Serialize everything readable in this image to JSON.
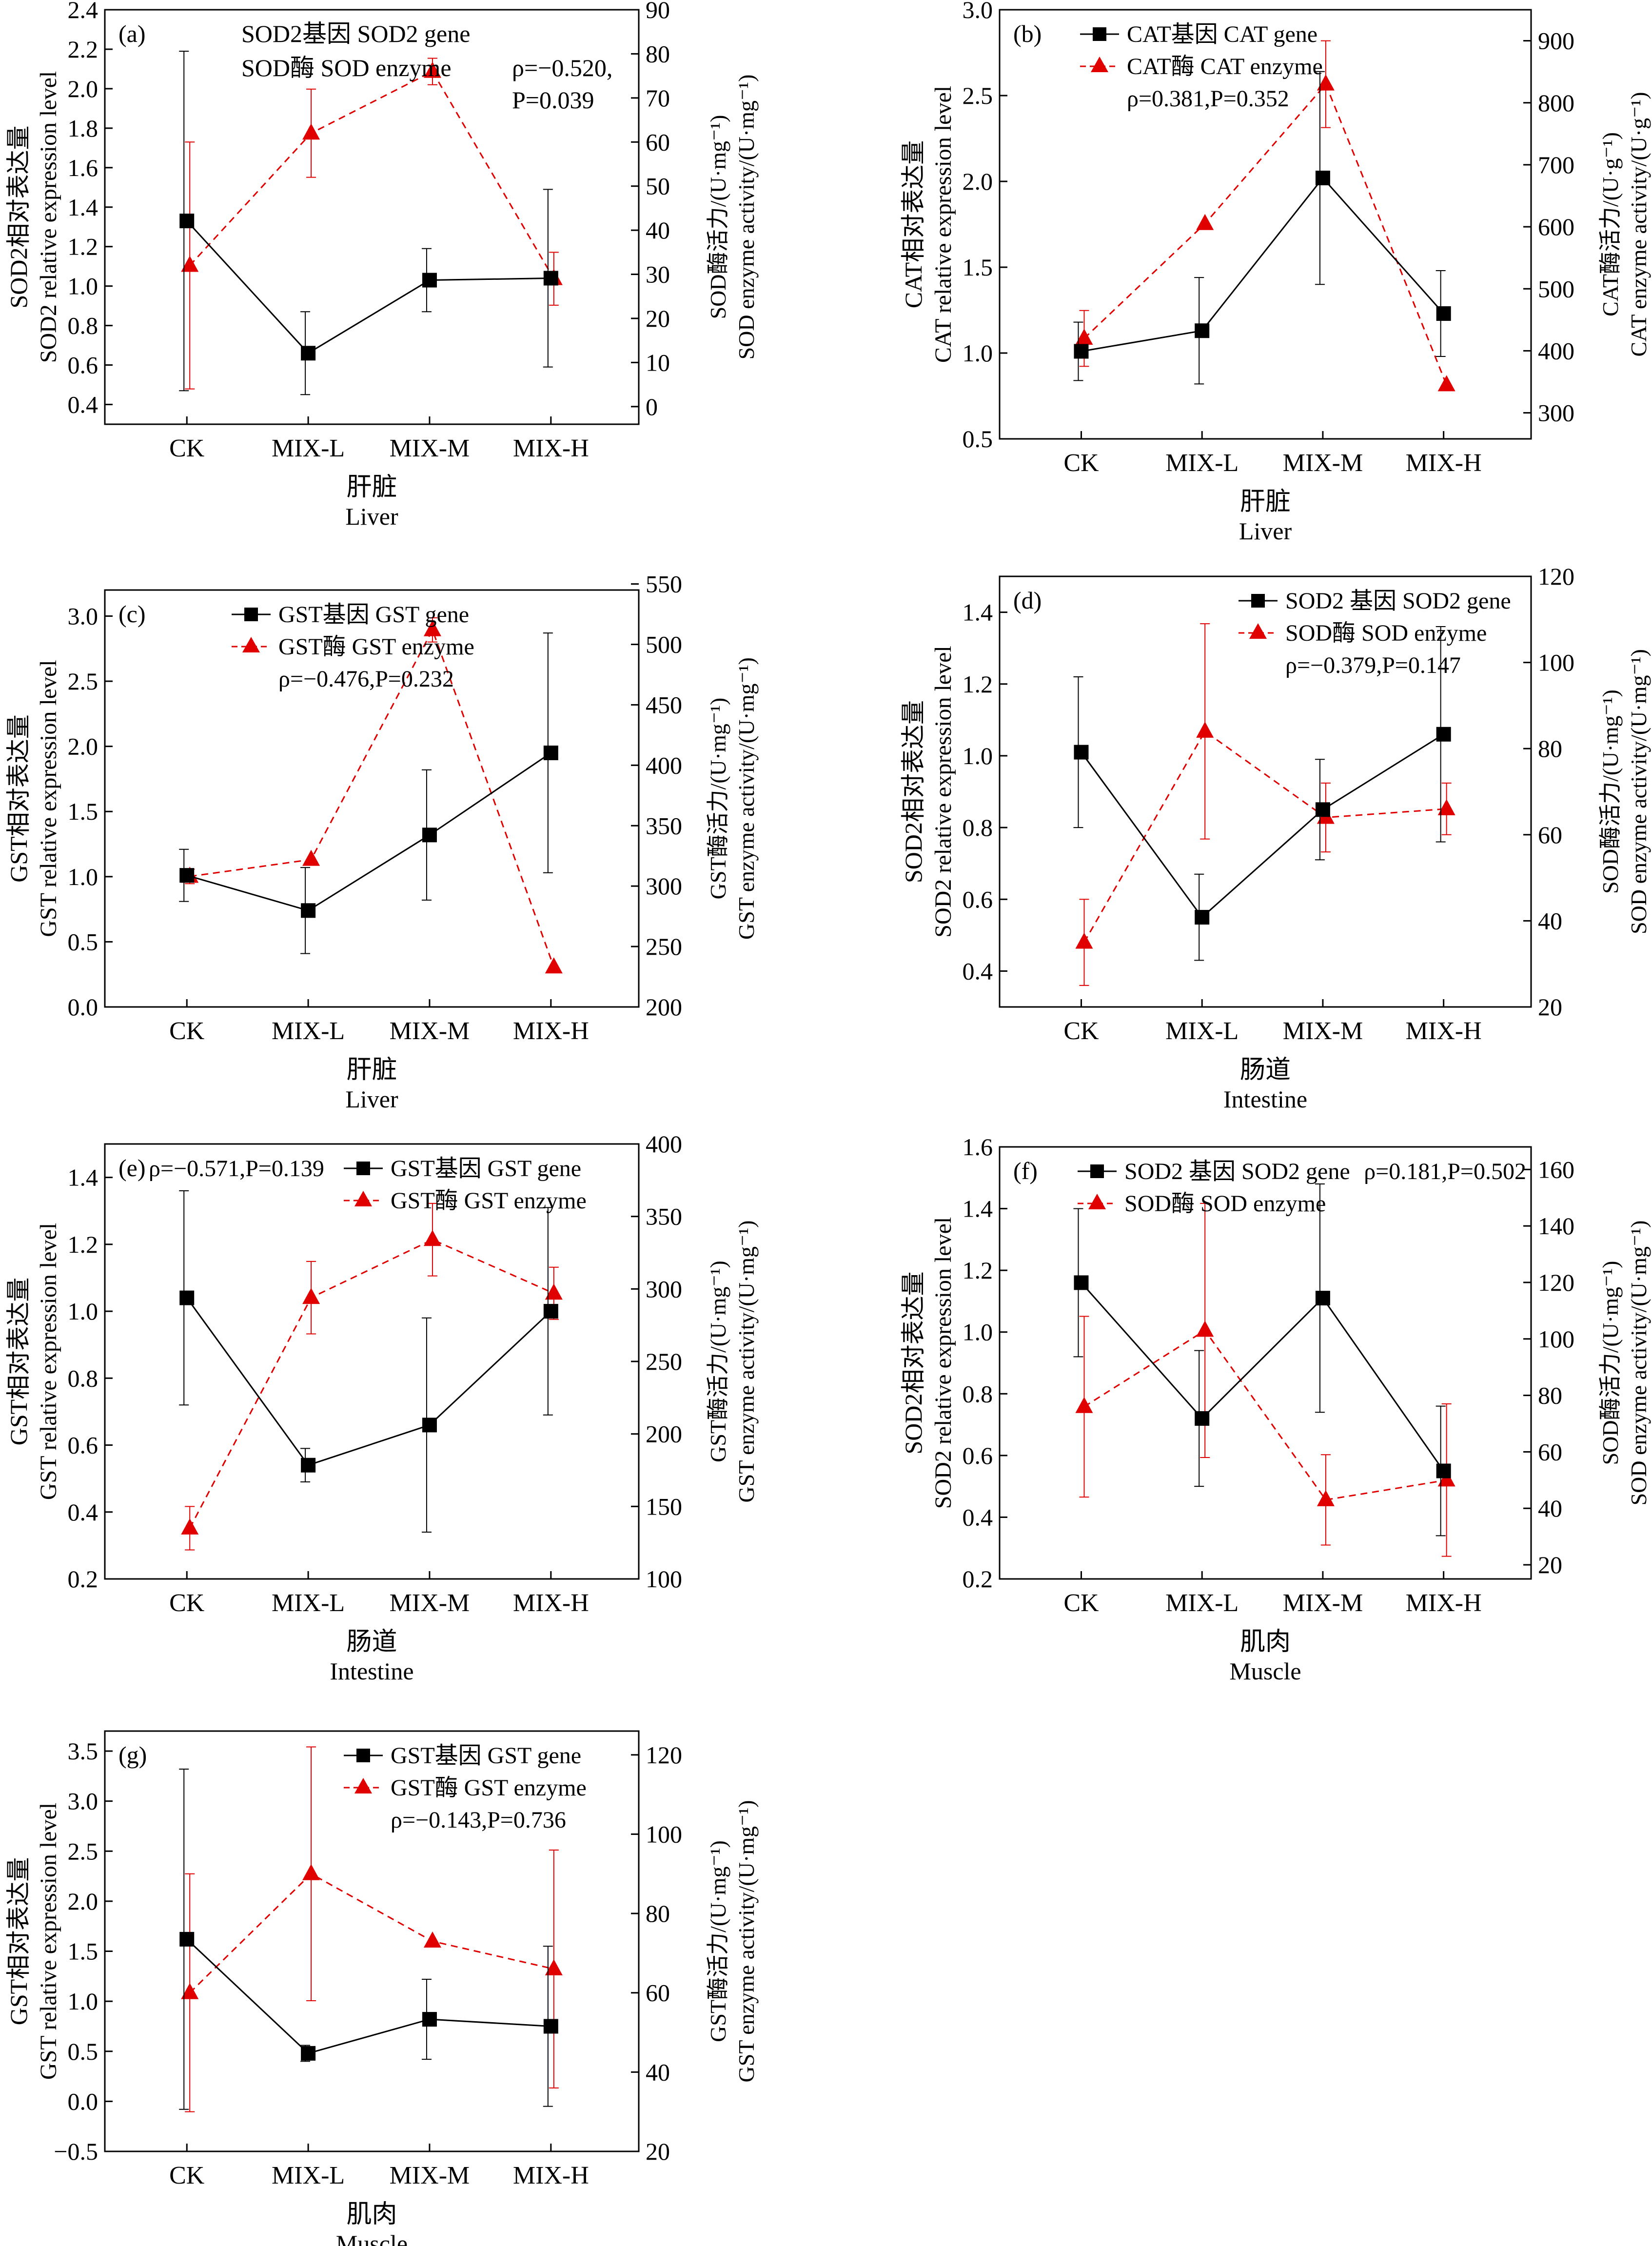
{
  "chart_data": [
    {
      "panel": "(a)",
      "type": "line",
      "categories": [
        "CK",
        "MIX-L",
        "MIX-M",
        "MIX-H"
      ],
      "xlabel_cn": "肝脏",
      "xlabel_en": "Liver",
      "left_ylabel_cn": "SOD2相对表达量",
      "left_ylabel_en": "SOD2 relative expression level",
      "right_ylabel_cn": "SOD酶活力/(U·mg⁻¹)",
      "right_ylabel_en": "SOD enzyme activity/(U·mg⁻¹)",
      "left_ylim": [
        0.3,
        2.4
      ],
      "left_ticks": [
        0.4,
        0.6,
        0.8,
        1.0,
        1.2,
        1.4,
        1.6,
        1.8,
        2.0,
        2.2,
        2.4
      ],
      "right_ylim": [
        -4,
        90
      ],
      "right_ticks": [
        0,
        10,
        20,
        30,
        40,
        50,
        60,
        70,
        80,
        90
      ],
      "gene": {
        "name": "SOD2基因 SOD2 gene",
        "values": [
          1.33,
          0.66,
          1.03,
          1.04
        ],
        "err": [
          0.86,
          0.21,
          0.16,
          0.45
        ]
      },
      "enzyme": {
        "name": "SOD酶 SOD enzyme",
        "values": [
          32,
          62,
          76,
          29
        ],
        "err": [
          28,
          10,
          3,
          6
        ]
      },
      "corr_line1": "ρ=−0.520,",
      "corr_line2": "P=0.039",
      "legend_style": "text"
    },
    {
      "panel": "(b)",
      "type": "line",
      "categories": [
        "CK",
        "MIX-L",
        "MIX-M",
        "MIX-H"
      ],
      "xlabel_cn": "肝脏",
      "xlabel_en": "Liver",
      "left_ylabel_cn": "CAT相对表达量",
      "left_ylabel_en": "CAT relative expression level",
      "right_ylabel_cn": "CAT酶活力/(U·g⁻¹)",
      "right_ylabel_en": "CAT enzyme activity/(U·g⁻¹)",
      "left_ylim": [
        0.5,
        3.0
      ],
      "left_ticks": [
        0.5,
        1.0,
        1.5,
        2.0,
        2.5,
        3.0
      ],
      "right_ylim": [
        258,
        950
      ],
      "right_ticks": [
        300,
        400,
        500,
        600,
        700,
        800,
        900
      ],
      "gene": {
        "name": "CAT基因 CAT gene",
        "values": [
          1.01,
          1.13,
          2.02,
          1.23
        ],
        "err": [
          0.17,
          0.31,
          0.62,
          0.25
        ]
      },
      "enzyme": {
        "name": "CAT酶 CAT enzyme",
        "values": [
          420,
          605,
          830,
          345
        ],
        "err": [
          45,
          0,
          70,
          0
        ]
      },
      "corr_line1": "ρ=0.381,P=0.352",
      "corr_line2": "",
      "legend_style": "symbol"
    },
    {
      "panel": "(c)",
      "type": "line",
      "categories": [
        "CK",
        "MIX-L",
        "MIX-M",
        "MIX-H"
      ],
      "xlabel_cn": "肝脏",
      "xlabel_en": "Liver",
      "left_ylabel_cn": "GST相对表达量",
      "left_ylabel_en": "GST relative expression level",
      "right_ylabel_cn": "GST酶活力/(U·mg⁻¹)",
      "right_ylabel_en": "GST enzyme activity/(U·mg⁻¹)",
      "left_ylim": [
        0.0,
        3.2
      ],
      "left_ticks": [
        0.0,
        0.5,
        1.0,
        1.5,
        2.0,
        2.5,
        3.0
      ],
      "right_ylim": [
        200,
        545
      ],
      "right_ticks": [
        200,
        250,
        300,
        350,
        400,
        450,
        500,
        550
      ],
      "gene": {
        "name": "GST基因 GST gene",
        "values": [
          1.01,
          0.74,
          1.32,
          1.95
        ],
        "err": [
          0.2,
          0.33,
          0.5,
          0.92
        ]
      },
      "enzyme": {
        "name": "GST酶 GST enzyme",
        "values": [
          308,
          322,
          512,
          233
        ],
        "err": [
          6,
          0,
          10,
          0
        ]
      },
      "corr_line1": "ρ=−0.476,P=0.232",
      "corr_line2": "",
      "legend_style": "symbol"
    },
    {
      "panel": "(d)",
      "type": "line",
      "categories": [
        "CK",
        "MIX-L",
        "MIX-M",
        "MIX-H"
      ],
      "xlabel_cn": "肠道",
      "xlabel_en": "Intestine",
      "left_ylabel_cn": "SOD2相对表达量",
      "left_ylabel_en": "SOD2 relative expression level",
      "right_ylabel_cn": "SOD酶活力/(U·mg⁻¹)",
      "right_ylabel_en": "SOD enzyme activity/(U·mg⁻¹)",
      "left_ylim": [
        0.3,
        1.5
      ],
      "left_ticks": [
        0.4,
        0.6,
        0.8,
        1.0,
        1.2,
        1.4
      ],
      "right_ylim": [
        20,
        120
      ],
      "right_ticks": [
        20,
        40,
        60,
        80,
        100,
        120
      ],
      "gene": {
        "name": "SOD2 基因 SOD2 gene",
        "values": [
          1.01,
          0.55,
          0.85,
          1.06
        ],
        "err": [
          0.21,
          0.12,
          0.14,
          0.3
        ]
      },
      "enzyme": {
        "name": "SOD酶 SOD enzyme",
        "values": [
          35,
          84,
          64,
          66
        ],
        "err": [
          10,
          25,
          8,
          6
        ]
      },
      "corr_line1": "ρ=−0.379,P=0.147",
      "corr_line2": "",
      "legend_style": "symbol"
    },
    {
      "panel": "(e)",
      "type": "line",
      "categories": [
        "CK",
        "MIX-L",
        "MIX-M",
        "MIX-H"
      ],
      "xlabel_cn": "肠道",
      "xlabel_en": "Intestine",
      "left_ylabel_cn": "GST相对表达量",
      "left_ylabel_en": "GST relative expression level",
      "right_ylabel_cn": "GST酶活力/(U·mg⁻¹)",
      "right_ylabel_en": "GST enzyme activity/(U·mg⁻¹)",
      "left_ylim": [
        0.2,
        1.5
      ],
      "left_ticks": [
        0.2,
        0.4,
        0.6,
        0.8,
        1.0,
        1.2,
        1.4
      ],
      "right_ylim": [
        100,
        400
      ],
      "right_ticks": [
        100,
        150,
        200,
        250,
        300,
        350,
        400
      ],
      "gene": {
        "name": "GST基因 GST gene",
        "values": [
          1.04,
          0.54,
          0.66,
          1.0
        ],
        "err": [
          0.32,
          0.05,
          0.32,
          0.31
        ]
      },
      "enzyme": {
        "name": "GST酶 GST enzyme",
        "values": [
          135,
          294,
          334,
          297
        ],
        "err": [
          15,
          25,
          25,
          18
        ]
      },
      "corr_line1": "ρ=−0.571,P=0.139",
      "corr_line2": "",
      "legend_style": "symbol"
    },
    {
      "panel": "(f)",
      "type": "line",
      "categories": [
        "CK",
        "MIX-L",
        "MIX-M",
        "MIX-H"
      ],
      "xlabel_cn": "肌肉",
      "xlabel_en": "Muscle",
      "left_ylabel_cn": "SOD2相对表达量",
      "left_ylabel_en": "SOD2 relative expression level",
      "right_ylabel_cn": "SOD酶活力/(U·mg⁻¹)",
      "right_ylabel_en": "SOD enzyme activity/(U·mg⁻¹)",
      "left_ylim": [
        0.2,
        1.6
      ],
      "left_ticks": [
        0.2,
        0.4,
        0.6,
        0.8,
        1.0,
        1.2,
        1.4,
        1.6
      ],
      "right_ylim": [
        15,
        168
      ],
      "right_ticks": [
        20,
        40,
        60,
        80,
        100,
        120,
        140,
        160
      ],
      "gene": {
        "name": "SOD2 基因 SOD2 gene",
        "values": [
          1.16,
          0.72,
          1.11,
          0.55
        ],
        "err": [
          0.24,
          0.22,
          0.37,
          0.21
        ]
      },
      "enzyme": {
        "name": "SOD酶 SOD enzyme",
        "values": [
          76,
          103,
          43,
          50
        ],
        "err": [
          32,
          45,
          16,
          27
        ]
      },
      "corr_line1": "ρ=0.181,P=0.502",
      "corr_line2": "",
      "legend_style": "symbol"
    },
    {
      "panel": "(g)",
      "type": "line",
      "categories": [
        "CK",
        "MIX-L",
        "MIX-M",
        "MIX-H"
      ],
      "xlabel_cn": "肌肉",
      "xlabel_en": "Muscle",
      "left_ylabel_cn": "GST相对表达量",
      "left_ylabel_en": "GST relative expression level",
      "right_ylabel_cn": "GST酶活力/(U·mg⁻¹)",
      "right_ylabel_en": "GST enzyme activity/(U·mg⁻¹)",
      "left_ylim": [
        -0.5,
        3.7
      ],
      "left_ticks": [
        -0.5,
        0.0,
        0.5,
        1.0,
        1.5,
        2.0,
        2.5,
        3.0,
        3.5
      ],
      "right_ylim": [
        20,
        126
      ],
      "right_ticks": [
        20,
        40,
        60,
        80,
        100,
        120
      ],
      "gene": {
        "name": "GST基因 GST gene",
        "values": [
          1.62,
          0.48,
          0.82,
          0.75
        ],
        "err": [
          1.7,
          0.08,
          0.4,
          0.8
        ]
      },
      "enzyme": {
        "name": "GST酶 GST enzyme",
        "values": [
          60,
          90,
          73,
          66
        ],
        "err": [
          30,
          32,
          0,
          30
        ]
      },
      "corr_line1": "ρ=−0.143,P=0.736",
      "corr_line2": "",
      "legend_style": "symbol"
    }
  ],
  "colors": {
    "gene": "#000000",
    "enzyme": "#e00000",
    "axis": "#000000"
  }
}
